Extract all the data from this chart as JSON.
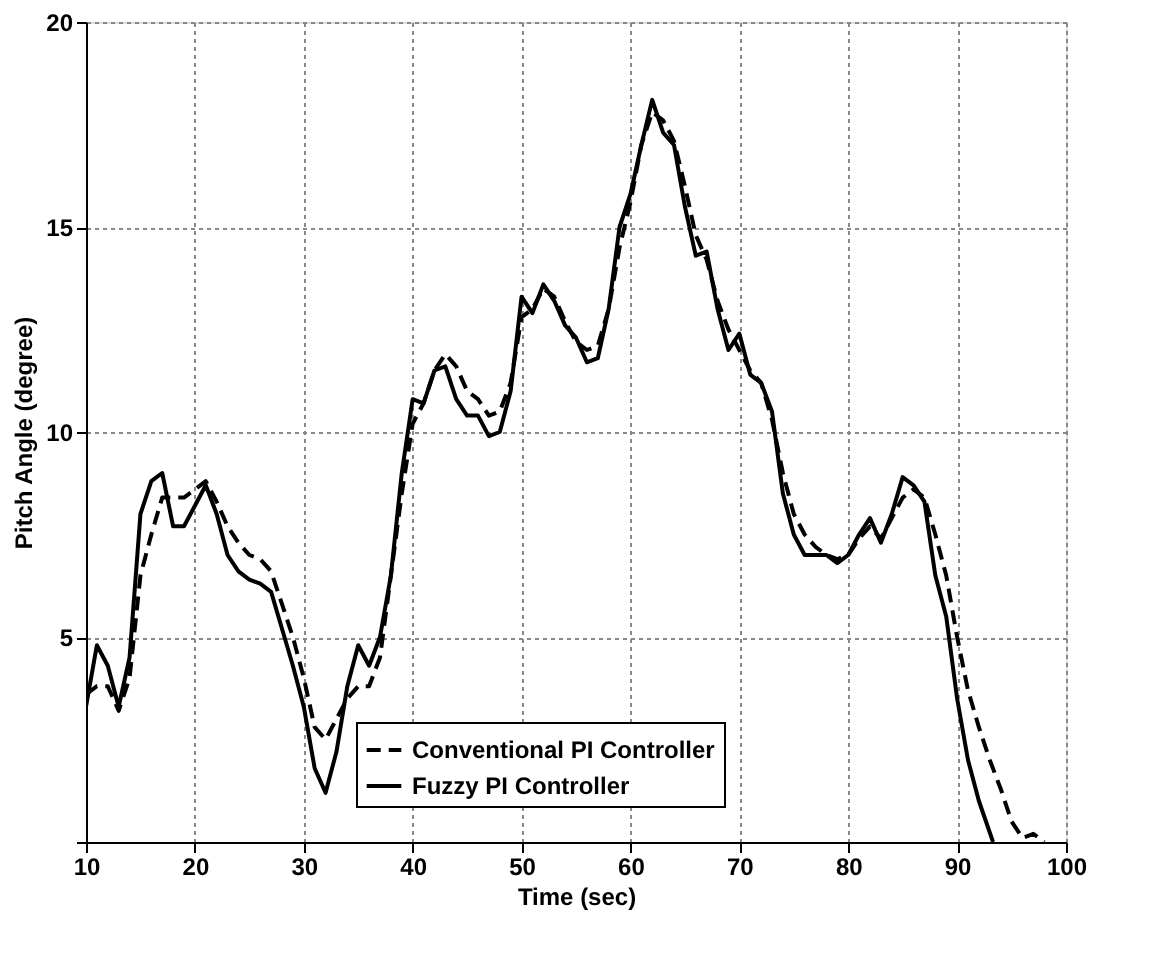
{
  "chart_data": {
    "type": "line",
    "xlabel": "Time (sec)",
    "ylabel": "Pitch Angle (degree)",
    "xlim": [
      10,
      100
    ],
    "xticks": [
      10,
      20,
      30,
      40,
      50,
      60,
      70,
      80,
      90,
      100
    ],
    "ylim": [
      0,
      20
    ],
    "yticks": [
      {
        "value": 0,
        "label": null
      },
      5,
      10,
      15,
      20
    ],
    "grid": true,
    "legend": "bottom",
    "marker": "none",
    "series": [
      {
        "name": "Conventional PI Controller",
        "color": "#000000",
        "line_style": "dashed",
        "x": [
          10,
          11,
          12,
          13,
          14,
          15,
          16,
          17,
          18,
          19,
          20,
          21,
          22,
          23,
          24,
          25,
          26,
          27,
          28,
          29,
          30,
          31,
          32,
          33,
          34,
          35,
          36,
          37,
          38,
          39,
          40,
          41,
          42,
          43,
          44,
          45,
          46,
          47,
          48,
          49,
          50,
          51,
          52,
          53,
          54,
          55,
          56,
          57,
          58,
          59,
          60,
          61,
          62,
          63,
          64,
          65,
          66,
          67,
          68,
          69,
          70,
          71,
          72,
          73,
          74,
          75,
          76,
          77,
          78,
          79,
          80,
          81,
          82,
          83,
          84,
          85,
          86,
          87,
          88,
          89,
          90,
          91,
          92,
          93,
          94,
          95,
          96,
          97,
          98
        ],
        "values": [
          3.6,
          3.8,
          3.8,
          3.2,
          4.0,
          6.5,
          7.5,
          8.4,
          8.4,
          8.4,
          8.6,
          8.8,
          8.3,
          7.7,
          7.3,
          7.0,
          6.9,
          6.6,
          5.8,
          5.0,
          4.0,
          2.8,
          2.5,
          3.0,
          3.5,
          3.8,
          3.8,
          4.5,
          6.5,
          8.5,
          10.2,
          10.7,
          11.5,
          11.9,
          11.6,
          11.0,
          10.8,
          10.4,
          10.5,
          11.2,
          12.8,
          13.0,
          13.5,
          13.3,
          12.7,
          12.2,
          12.0,
          12.1,
          13.0,
          14.5,
          15.6,
          17.0,
          17.8,
          17.6,
          17.1,
          16.0,
          14.8,
          14.2,
          13.2,
          12.5,
          12.0,
          11.5,
          11.2,
          10.3,
          9.0,
          8.0,
          7.5,
          7.2,
          7.0,
          6.9,
          7.0,
          7.4,
          7.7,
          7.4,
          7.9,
          8.4,
          8.6,
          8.4,
          7.5,
          6.5,
          5.0,
          3.7,
          2.8,
          2.0,
          1.3,
          0.5,
          0.1,
          0.2,
          0
        ]
      },
      {
        "name": "Fuzzy PI Controller",
        "color": "#000000",
        "line_style": "solid",
        "x": [
          10,
          11,
          12,
          13,
          14,
          15,
          16,
          17,
          18,
          19,
          20,
          21,
          22,
          23,
          24,
          25,
          26,
          27,
          28,
          29,
          30,
          31,
          32,
          33,
          34,
          35,
          36,
          37,
          38,
          39,
          40,
          41,
          42,
          43,
          44,
          45,
          46,
          47,
          48,
          49,
          50,
          51,
          52,
          53,
          54,
          55,
          56,
          57,
          58,
          59,
          60,
          61,
          62,
          63,
          64,
          65,
          66,
          67,
          68,
          69,
          70,
          71,
          72,
          73,
          74,
          75,
          76,
          77,
          78,
          79,
          80,
          81,
          82,
          83,
          84,
          85,
          86,
          87,
          88,
          89,
          90,
          91,
          92,
          93.3
        ],
        "values": [
          3.3,
          4.8,
          4.3,
          3.3,
          4.5,
          8.0,
          8.8,
          9.0,
          7.7,
          7.7,
          8.2,
          8.7,
          8.0,
          7.0,
          6.6,
          6.4,
          6.3,
          6.1,
          5.2,
          4.3,
          3.3,
          1.8,
          1.2,
          2.2,
          3.8,
          4.8,
          4.3,
          5.0,
          6.5,
          9.0,
          10.8,
          10.7,
          11.5,
          11.6,
          10.8,
          10.4,
          10.4,
          9.9,
          10.0,
          11.0,
          13.3,
          12.9,
          13.6,
          13.2,
          12.6,
          12.3,
          11.7,
          11.8,
          13.0,
          15.0,
          15.8,
          17.0,
          18.1,
          17.3,
          17.0,
          15.5,
          14.3,
          14.4,
          13.0,
          12.0,
          12.4,
          11.4,
          11.2,
          10.5,
          8.5,
          7.5,
          7.0,
          7.0,
          7.0,
          6.8,
          7.0,
          7.5,
          7.9,
          7.3,
          8.0,
          8.9,
          8.7,
          8.3,
          6.5,
          5.5,
          3.5,
          2.0,
          1.0,
          0
        ]
      }
    ]
  }
}
